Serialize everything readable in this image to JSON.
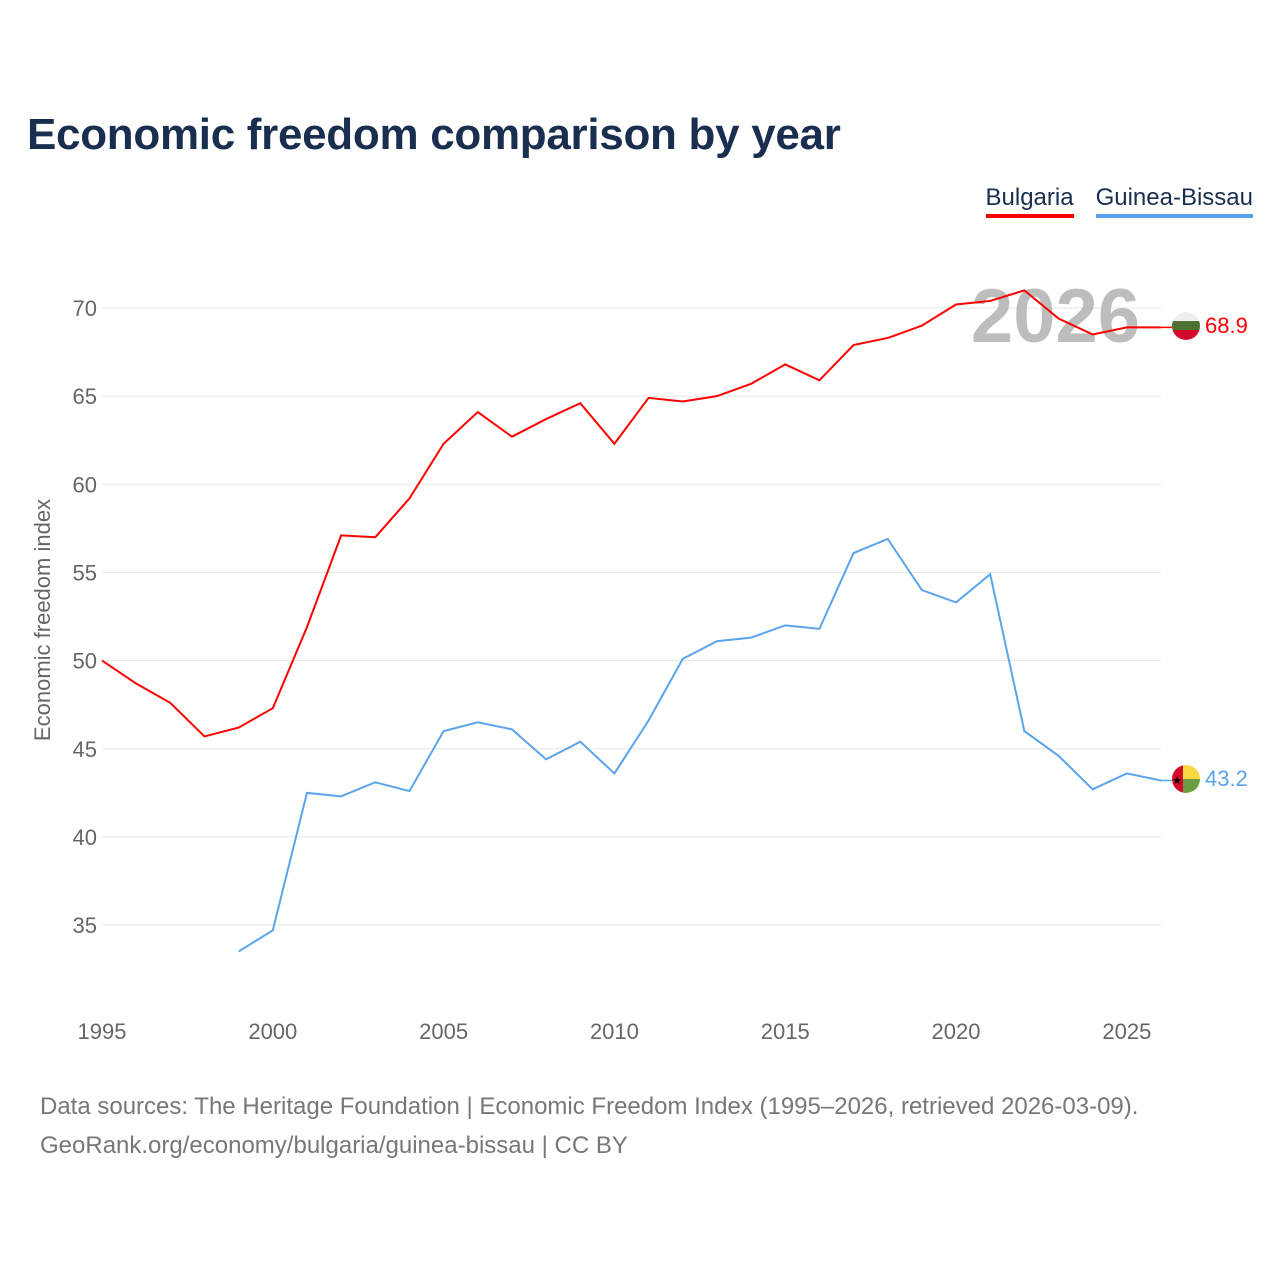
{
  "chart_data": {
    "type": "line",
    "title": "Economic freedom comparison by year",
    "xlabel": "",
    "ylabel": "Economic freedom index",
    "xlim": [
      1995,
      2026
    ],
    "ylim": [
      31,
      73
    ],
    "x_ticks": [
      1995,
      2000,
      2005,
      2010,
      2015,
      2020,
      2025
    ],
    "y_ticks": [
      35,
      40,
      45,
      50,
      55,
      60,
      65,
      70
    ],
    "grid": true,
    "legend_position": "top-right",
    "year_watermark": "2026",
    "series": [
      {
        "name": "Bulgaria",
        "color": "#ff0000",
        "end_label": "68.9",
        "flag": "bulgaria-flag",
        "x": [
          1995,
          1996,
          1997,
          1998,
          1999,
          2000,
          2001,
          2002,
          2003,
          2004,
          2005,
          2006,
          2007,
          2008,
          2009,
          2010,
          2011,
          2012,
          2013,
          2014,
          2015,
          2016,
          2017,
          2018,
          2019,
          2020,
          2021,
          2022,
          2023,
          2024,
          2025,
          2026
        ],
        "values": [
          50.0,
          48.7,
          47.6,
          45.7,
          46.2,
          47.3,
          51.9,
          57.1,
          57.0,
          59.2,
          62.3,
          64.1,
          62.7,
          63.7,
          64.6,
          62.3,
          64.9,
          64.7,
          65.0,
          65.7,
          66.8,
          65.9,
          67.9,
          68.3,
          69.0,
          70.2,
          70.4,
          71.0,
          69.4,
          68.5,
          68.9,
          68.9
        ]
      },
      {
        "name": "Guinea-Bissau",
        "color": "#5ba4ec",
        "end_label": "43.2",
        "flag": "guinea-bissau-flag",
        "x": [
          1999,
          2000,
          2001,
          2002,
          2003,
          2004,
          2005,
          2006,
          2007,
          2008,
          2009,
          2010,
          2011,
          2012,
          2013,
          2014,
          2015,
          2016,
          2017,
          2018,
          2019,
          2020,
          2021,
          2022,
          2023,
          2024,
          2025,
          2026
        ],
        "values": [
          33.5,
          34.7,
          42.5,
          42.3,
          43.1,
          42.6,
          46.0,
          46.5,
          46.1,
          44.4,
          45.4,
          43.6,
          46.6,
          50.1,
          51.1,
          51.3,
          52.0,
          51.8,
          56.1,
          56.9,
          54.0,
          53.3,
          54.9,
          46.0,
          44.6,
          42.7,
          43.6,
          43.2
        ]
      }
    ]
  },
  "source": {
    "line1": "Data sources: The Heritage Foundation | Economic Freedom Index (1995–2026, retrieved 2026-03-09).",
    "line2": "GeoRank.org/economy/bulgaria/guinea-bissau | CC BY"
  }
}
